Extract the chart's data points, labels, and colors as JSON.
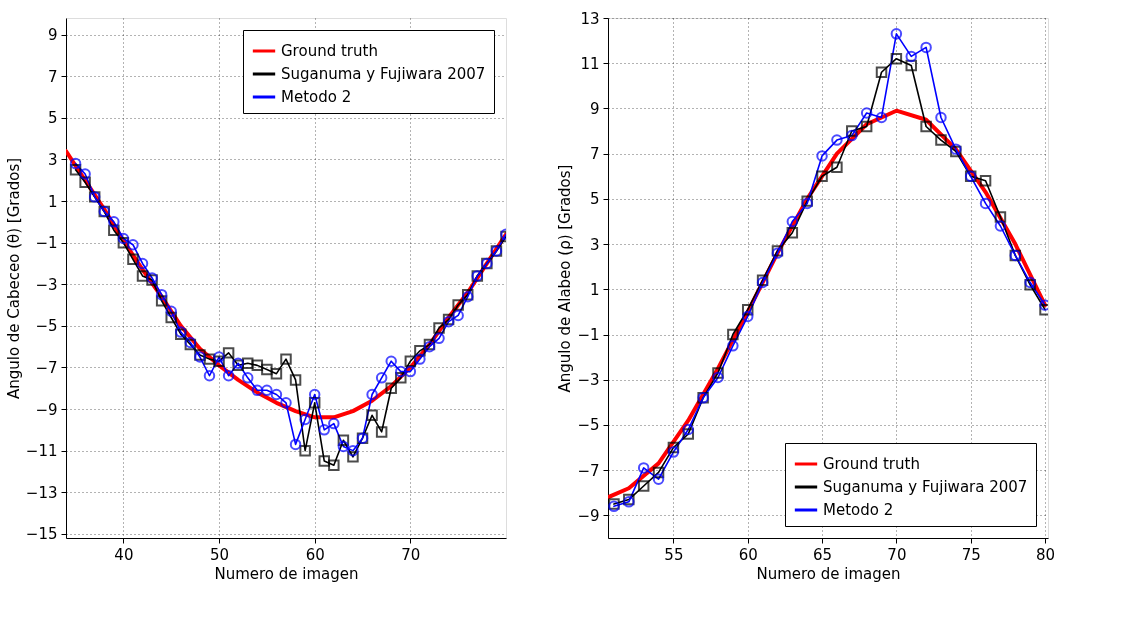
{
  "chart_data": [
    {
      "type": "line",
      "xlabel": "Numero de imagen",
      "ylabel": "Angulo de Cabeceo (θ) [Grados]",
      "xlim": [
        34,
        80
      ],
      "ylim": [
        -15.2,
        9.8
      ],
      "xticks": [
        40,
        50,
        60,
        70
      ],
      "yticks": [
        -15,
        -13,
        -11,
        -9,
        -7,
        -5,
        -3,
        -1,
        1,
        3,
        5,
        7,
        9
      ],
      "grid": true,
      "legend": "top right",
      "line_style": "solid",
      "series": [
        {
          "name": "Ground truth",
          "color": "#ff0000",
          "marker": "none",
          "x": [
            34,
            36,
            38,
            40,
            42,
            44,
            46,
            48,
            50,
            52,
            54,
            56,
            58,
            60,
            62,
            64,
            66,
            68,
            70,
            72,
            74,
            76,
            78,
            80
          ],
          "values": [
            3.4,
            2.0,
            0.6,
            -0.9,
            -2.3,
            -3.6,
            -5.0,
            -6.1,
            -6.9,
            -7.6,
            -8.2,
            -8.7,
            -9.1,
            -9.4,
            -9.4,
            -9.1,
            -8.6,
            -7.9,
            -7.0,
            -5.9,
            -4.6,
            -3.4,
            -2.0,
            -0.6
          ]
        },
        {
          "name": "Suganuma y Fujiwara 2007",
          "color": "#000000",
          "marker": "square",
          "x": [
            35,
            36,
            37,
            38,
            39,
            40,
            41,
            42,
            43,
            44,
            45,
            46,
            47,
            48,
            49,
            50,
            51,
            52,
            53,
            54,
            55,
            56,
            57,
            58,
            59,
            60,
            61,
            62,
            63,
            64,
            65,
            66,
            67,
            68,
            69,
            70,
            71,
            72,
            73,
            74,
            75,
            76,
            77,
            78,
            79,
            80
          ],
          "values": [
            2.5,
            1.9,
            1.2,
            0.5,
            -0.4,
            -1.0,
            -1.8,
            -2.6,
            -2.8,
            -3.8,
            -4.6,
            -5.4,
            -5.9,
            -6.4,
            -6.6,
            -6.7,
            -6.3,
            -6.9,
            -6.8,
            -6.9,
            -7.1,
            -7.3,
            -6.6,
            -7.6,
            -11.0,
            -8.7,
            -11.5,
            -11.7,
            -10.5,
            -11.3,
            -10.4,
            -9.3,
            -10.1,
            -8.0,
            -7.5,
            -6.7,
            -6.2,
            -5.9,
            -5.1,
            -4.7,
            -4.0,
            -3.5,
            -2.6,
            -2.0,
            -1.4,
            -0.7
          ]
        },
        {
          "name": "Metodo 2",
          "color": "#0000ff",
          "marker": "circle",
          "x": [
            35,
            36,
            37,
            38,
            39,
            40,
            41,
            42,
            43,
            44,
            45,
            46,
            47,
            48,
            49,
            50,
            51,
            52,
            53,
            54,
            55,
            56,
            57,
            58,
            59,
            60,
            61,
            62,
            63,
            64,
            65,
            66,
            67,
            68,
            69,
            70,
            71,
            72,
            73,
            74,
            75,
            76,
            77,
            78,
            79,
            80
          ],
          "values": [
            2.8,
            2.3,
            1.2,
            0.5,
            0.0,
            -0.8,
            -1.1,
            -2.0,
            -2.7,
            -3.5,
            -4.3,
            -5.3,
            -5.8,
            -6.5,
            -7.4,
            -6.5,
            -7.4,
            -6.8,
            -7.5,
            -8.1,
            -8.1,
            -8.3,
            -8.7,
            -10.7,
            -9.5,
            -8.3,
            -10.0,
            -9.7,
            -10.8,
            -11.0,
            -10.4,
            -8.3,
            -7.5,
            -6.7,
            -7.2,
            -7.2,
            -6.6,
            -6.0,
            -5.6,
            -4.8,
            -4.5,
            -3.6,
            -2.6,
            -2.0,
            -1.4,
            -0.6
          ]
        }
      ]
    },
    {
      "type": "line",
      "xlabel": "Numero de imagen",
      "ylabel": "Angulo de Alabeo (ρ) [Grados]",
      "xlim": [
        50.6,
        80.2
      ],
      "ylim": [
        -10,
        13
      ],
      "xticks": [
        55,
        60,
        65,
        70,
        75,
        80
      ],
      "yticks": [
        -9,
        -7,
        -5,
        -3,
        -1,
        1,
        3,
        5,
        7,
        9,
        11,
        13
      ],
      "grid": true,
      "legend": "bottom right",
      "line_style": "solid",
      "series": [
        {
          "name": "Ground truth",
          "color": "#ff0000",
          "marker": "none",
          "x": [
            50.6,
            52,
            54,
            56,
            58,
            60,
            62,
            64,
            66,
            68,
            70,
            72,
            74,
            76,
            78,
            80
          ],
          "values": [
            -8.2,
            -7.8,
            -6.7,
            -4.8,
            -2.5,
            0.0,
            2.6,
            5.0,
            7.0,
            8.3,
            8.9,
            8.5,
            7.2,
            5.3,
            3.0,
            0.3
          ]
        },
        {
          "name": "Suganuma y Fujiwara 2007",
          "color": "#000000",
          "marker": "square",
          "x": [
            51,
            52,
            53,
            54,
            55,
            56,
            57,
            58,
            59,
            60,
            61,
            62,
            63,
            64,
            65,
            66,
            67,
            68,
            69,
            70,
            71,
            72,
            73,
            74,
            75,
            76,
            77,
            78,
            79,
            80
          ],
          "values": [
            -8.5,
            -8.3,
            -7.7,
            -7.1,
            -6.0,
            -5.4,
            -3.8,
            -2.7,
            -1.0,
            0.1,
            1.4,
            2.7,
            3.5,
            4.9,
            6.0,
            6.4,
            8.0,
            8.2,
            10.6,
            11.2,
            10.9,
            8.2,
            7.6,
            7.1,
            6.0,
            5.8,
            4.2,
            2.5,
            1.2,
            0.1
          ]
        },
        {
          "name": "Metodo 2",
          "color": "#0000ff",
          "marker": "circle",
          "x": [
            51,
            52,
            53,
            54,
            55,
            56,
            57,
            58,
            59,
            60,
            61,
            62,
            63,
            64,
            65,
            66,
            67,
            68,
            69,
            70,
            71,
            72,
            73,
            74,
            75,
            76,
            77,
            78,
            79,
            80
          ],
          "values": [
            -8.6,
            -8.4,
            -6.9,
            -7.4,
            -6.2,
            -5.2,
            -3.8,
            -2.9,
            -1.5,
            -0.2,
            1.3,
            2.6,
            4.0,
            4.8,
            6.9,
            7.6,
            7.8,
            8.8,
            8.6,
            12.3,
            11.3,
            11.7,
            8.6,
            7.2,
            6.0,
            4.8,
            3.8,
            2.5,
            1.3,
            0.3
          ]
        }
      ]
    }
  ]
}
